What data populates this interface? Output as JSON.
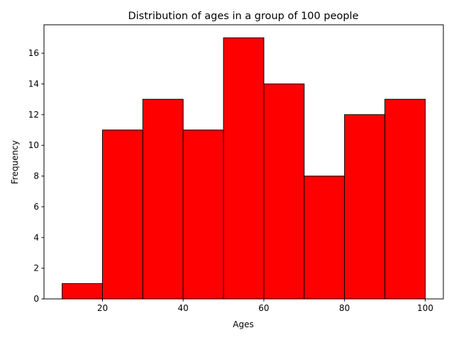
{
  "chart_data": {
    "type": "bar",
    "title": "Distribution of ages in a group of 100 people",
    "xlabel": "Ages",
    "ylabel": "Frequency",
    "bins": [
      {
        "start": 10,
        "end": 20,
        "count": 1
      },
      {
        "start": 20,
        "end": 30,
        "count": 11
      },
      {
        "start": 30,
        "end": 40,
        "count": 13
      },
      {
        "start": 40,
        "end": 50,
        "count": 11
      },
      {
        "start": 50,
        "end": 60,
        "count": 17
      },
      {
        "start": 60,
        "end": 70,
        "count": 14
      },
      {
        "start": 70,
        "end": 80,
        "count": 8
      },
      {
        "start": 80,
        "end": 90,
        "count": 12
      },
      {
        "start": 90,
        "end": 100,
        "count": 13
      }
    ],
    "xlim": [
      5.5,
      104.5
    ],
    "ylim": [
      0,
      17.85
    ],
    "x_ticks": [
      "20",
      "40",
      "60",
      "80",
      "100"
    ],
    "y_ticks": [
      "0",
      "2",
      "4",
      "6",
      "8",
      "10",
      "12",
      "14",
      "16"
    ],
    "bar_color": "#ff0000",
    "edge_color": "#000000",
    "grid": false,
    "legend": "none"
  }
}
